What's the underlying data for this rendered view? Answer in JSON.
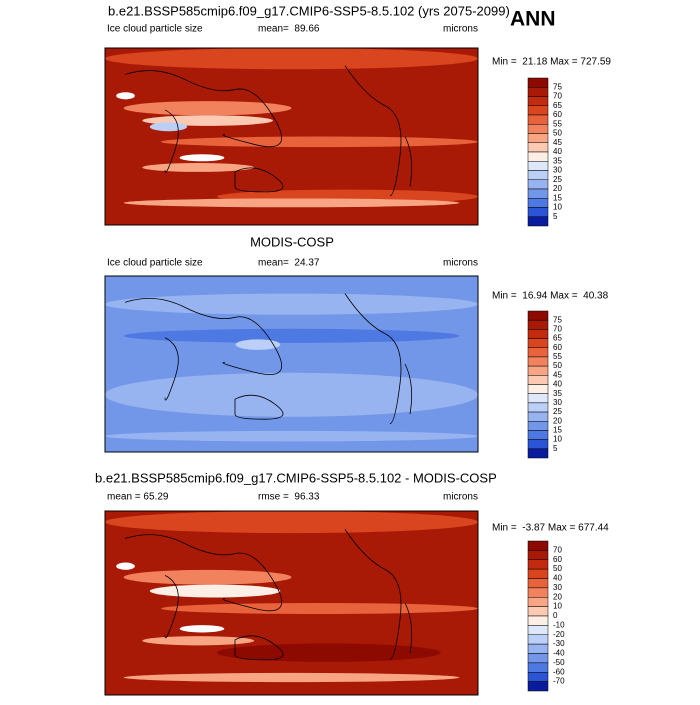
{
  "label": "ANN",
  "panels": [
    {
      "title": "b.e21.BSSP585cmip6.f09_g17.CMIP6-SSP5-8.5.102 (yrs 2075-2099)",
      "left": "Ice cloud particle size",
      "center": "mean=  89.66",
      "right": "microns",
      "stats": "Min =  21.18 Max = 727.59",
      "colorbar": {
        "labels": [
          "75",
          "70",
          "65",
          "60",
          "55",
          "50",
          "45",
          "40",
          "35",
          "30",
          "25",
          "20",
          "15",
          "10",
          "5"
        ],
        "colors": [
          "#8c0a00",
          "#a81a05",
          "#c22b10",
          "#d8451f",
          "#e8623c",
          "#f2825e",
          "#f8a584",
          "#fcc9b2",
          "#fdeee6",
          "#dfe8fb",
          "#bccff6",
          "#97b3f0",
          "#7297e9",
          "#4f79e2",
          "#2b55d6",
          "#0a1c9e"
        ]
      }
    },
    {
      "title": "MODIS-COSP",
      "left": "Ice cloud particle size",
      "center": "mean=  24.37",
      "right": "microns",
      "stats": "Min =  16.94 Max =  40.38",
      "colorbar": {
        "labels": [
          "75",
          "70",
          "65",
          "60",
          "55",
          "50",
          "45",
          "40",
          "35",
          "30",
          "25",
          "20",
          "15",
          "10",
          "5"
        ],
        "colors": [
          "#8c0a00",
          "#a81a05",
          "#c22b10",
          "#d8451f",
          "#e8623c",
          "#f2825e",
          "#f8a584",
          "#fcc9b2",
          "#fdeee6",
          "#dfe8fb",
          "#bccff6",
          "#97b3f0",
          "#7297e9",
          "#4f79e2",
          "#2b55d6",
          "#0a1c9e"
        ]
      }
    },
    {
      "title": "b.e21.BSSP585cmip6.f09_g17.CMIP6-SSP5-8.5.102 - MODIS-COSP",
      "left": "mean =  65.29",
      "center": "rmse =  96.33",
      "right": "microns",
      "stats": "Min =  -3.87 Max = 677.44",
      "colorbar": {
        "labels": [
          "70",
          "60",
          "50",
          "40",
          "30",
          "20",
          "10",
          "0",
          "-10",
          "-20",
          "-30",
          "-40",
          "-50",
          "-60",
          "-70"
        ],
        "colors": [
          "#8c0a00",
          "#a81a05",
          "#c22b10",
          "#d8451f",
          "#e8623c",
          "#f2825e",
          "#f8a584",
          "#fcc9b2",
          "#fdeee6",
          "#dfe8fb",
          "#bccff6",
          "#97b3f0",
          "#7297e9",
          "#4f79e2",
          "#2b55d6",
          "#0a1c9e"
        ]
      }
    }
  ]
}
